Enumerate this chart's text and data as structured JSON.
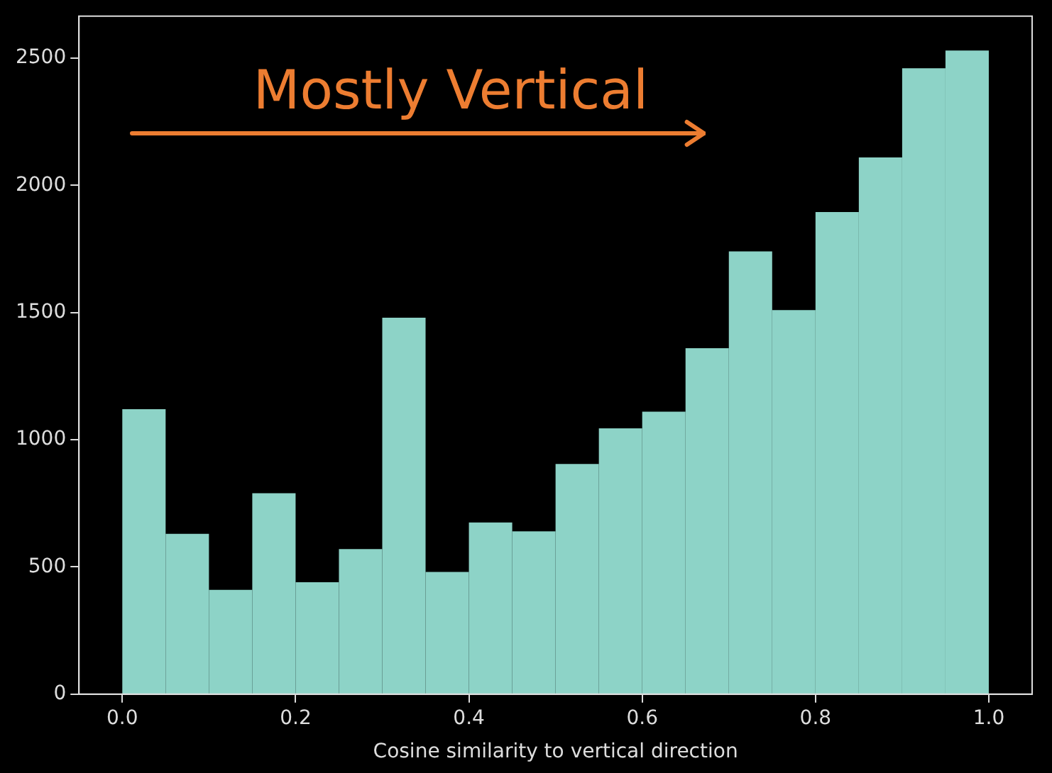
{
  "chart_data": {
    "type": "histogram",
    "xlabel": "Cosine similarity to vertical direction",
    "bins": [
      0,
      0.05,
      0.1,
      0.15,
      0.2,
      0.25,
      0.3,
      0.35,
      0.4,
      0.45,
      0.5,
      0.55,
      0.6,
      0.65,
      0.7,
      0.75,
      0.8,
      0.85,
      0.9,
      0.95,
      1.0
    ],
    "values": [
      1120,
      630,
      410,
      790,
      440,
      570,
      1480,
      480,
      675,
      640,
      905,
      1045,
      1110,
      1360,
      1740,
      1510,
      1895,
      2110,
      2460,
      2530
    ],
    "color": "#8dd3c7",
    "xlim": [
      -0.05,
      1.05
    ],
    "xticks": [
      {
        "value": 0,
        "label": "0.0"
      },
      {
        "value": 0.2,
        "label": "0.2"
      },
      {
        "value": 0.4,
        "label": "0.4"
      },
      {
        "value": 0.6,
        "label": "0.6"
      },
      {
        "value": 0.8,
        "label": "0.8"
      },
      {
        "value": 1,
        "label": "1.0"
      }
    ],
    "ylim": [
      0,
      2665
    ],
    "yticks": [
      0,
      500,
      1000,
      1500,
      2000,
      2500
    ],
    "grid": false,
    "annotations": [
      "Mostly Vertical"
    ]
  }
}
